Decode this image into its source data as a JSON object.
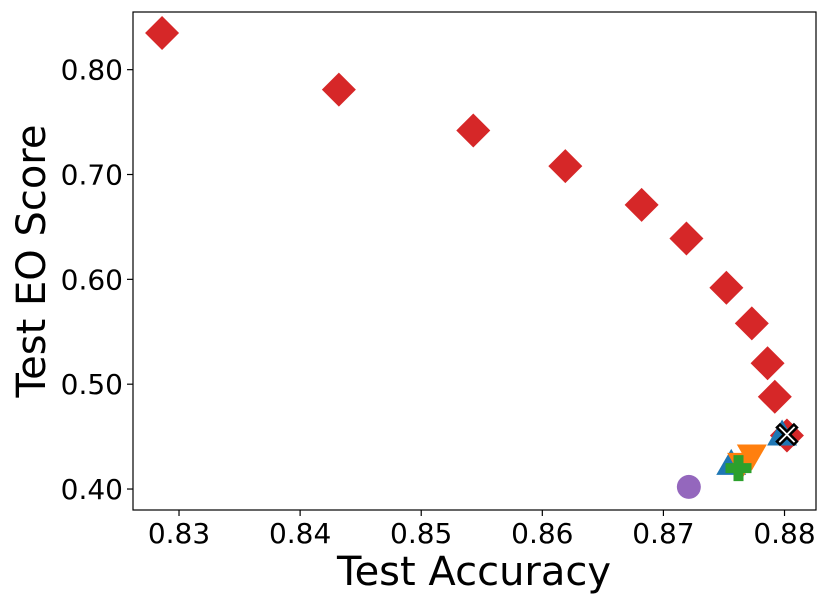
{
  "chart_data": {
    "type": "scatter",
    "title": "",
    "xlabel": "Test Accuracy",
    "ylabel": "Test EO Score",
    "xlim": [
      0.8262,
      0.8826
    ],
    "ylim": [
      0.38,
      0.855
    ],
    "xticks": [
      "0.83",
      "0.84",
      "0.85",
      "0.86",
      "0.87",
      "0.88"
    ],
    "yticks": [
      "0.40",
      "0.50",
      "0.60",
      "0.70",
      "0.80"
    ],
    "grid": false,
    "legend": "none",
    "series": [
      {
        "marker": "diamond",
        "color": "#d62728",
        "points": [
          [
            0.8286,
            0.835
          ],
          [
            0.8432,
            0.781
          ],
          [
            0.8543,
            0.742
          ],
          [
            0.8619,
            0.708
          ],
          [
            0.8682,
            0.671
          ],
          [
            0.8719,
            0.639
          ],
          [
            0.8752,
            0.592
          ],
          [
            0.8773,
            0.558
          ],
          [
            0.8786,
            0.52
          ],
          [
            0.8792,
            0.488
          ],
          [
            0.8802,
            0.451
          ]
        ]
      },
      {
        "marker": "triangle-up",
        "color": "#1f77b4",
        "points": [
          [
            0.8756,
            0.424
          ],
          [
            0.8798,
            0.452
          ]
        ]
      },
      {
        "marker": "triangle-down",
        "color": "#ff7f0e",
        "points": [
          [
            0.8765,
            0.424
          ],
          [
            0.8773,
            0.432
          ]
        ]
      },
      {
        "marker": "plus",
        "color": "#2ca02c",
        "points": [
          [
            0.8762,
            0.42
          ]
        ]
      },
      {
        "marker": "circle",
        "color": "#9467bd",
        "points": [
          [
            0.8721,
            0.402
          ]
        ]
      },
      {
        "marker": "x-filled",
        "color": "#ffffff",
        "edge": "#000000",
        "points": [
          [
            0.8802,
            0.452
          ]
        ]
      }
    ]
  }
}
